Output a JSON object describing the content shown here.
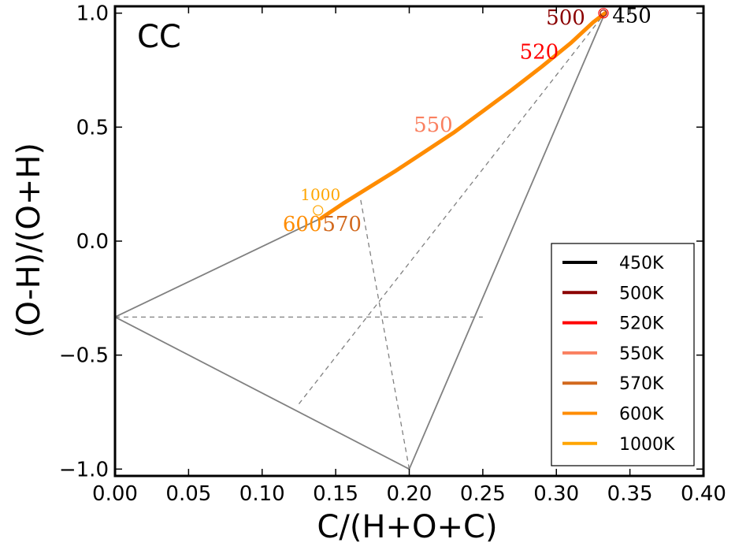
{
  "chart_data": {
    "type": "line",
    "panel_label": "CC",
    "xlabel": "C/(H+O+C)",
    "ylabel": "(O-H)/(O+H)",
    "xlim": [
      0.0,
      0.4
    ],
    "ylim": [
      -1.03,
      1.03
    ],
    "xticks": [
      0.0,
      0.05,
      0.1,
      0.15,
      0.2,
      0.25,
      0.3,
      0.35,
      0.4
    ],
    "xtick_labels": [
      "0.00",
      "0.05",
      "0.10",
      "0.15",
      "0.20",
      "0.25",
      "0.30",
      "0.35",
      "0.40"
    ],
    "yticks": [
      -1.0,
      -0.5,
      0.0,
      0.5,
      1.0
    ],
    "ytick_labels": [
      "−1.0",
      "−0.5",
      "0.0",
      "0.5",
      "1.0"
    ],
    "boundary_solid": [
      [
        [
          0.0,
          -0.333
        ],
        [
          0.14,
          0.1
        ]
      ],
      [
        [
          0.0,
          -0.333
        ],
        [
          0.2,
          -1.0
        ]
      ],
      [
        [
          0.2,
          -1.0
        ],
        [
          0.333,
          1.0
        ]
      ]
    ],
    "boundary_dashed": [
      [
        [
          0.0,
          -0.333
        ],
        [
          0.25,
          -0.333
        ]
      ],
      [
        [
          0.125,
          -0.714
        ],
        [
          0.333,
          1.0
        ]
      ],
      [
        [
          0.2,
          -1.0
        ],
        [
          0.167,
          0.18
        ]
      ]
    ],
    "legend_title": "",
    "series": [
      {
        "name": "450K",
        "color": "#000000"
      },
      {
        "name": "500K",
        "color": "#8b0000"
      },
      {
        "name": "520K",
        "color": "#ff0000"
      },
      {
        "name": "550K",
        "color": "#fa8060"
      },
      {
        "name": "570K",
        "color": "#d2691e"
      },
      {
        "name": "600K",
        "color": "#ff8c00"
      },
      {
        "name": "1000K",
        "color": "#ffa500"
      }
    ],
    "curve_points": [
      [
        0.333,
        1.0
      ],
      [
        0.325,
        0.96
      ],
      [
        0.31,
        0.87
      ],
      [
        0.29,
        0.765
      ],
      [
        0.27,
        0.665
      ],
      [
        0.25,
        0.57
      ],
      [
        0.23,
        0.475
      ],
      [
        0.21,
        0.39
      ],
      [
        0.19,
        0.305
      ],
      [
        0.17,
        0.225
      ],
      [
        0.155,
        0.165
      ],
      [
        0.14,
        0.1
      ]
    ],
    "curve_color": "#ff8c00",
    "markers": [
      {
        "x": 0.332,
        "y": 1.0,
        "color": "#ff0000"
      },
      {
        "x": 0.332,
        "y": 1.0,
        "color": "#8b0000"
      },
      {
        "x": 0.138,
        "y": 0.135,
        "color": "#ffa500"
      }
    ],
    "annotations": [
      {
        "text": "450",
        "x": 0.338,
        "y": 0.96,
        "color": "#000000",
        "size": 26
      },
      {
        "text": "500",
        "x": 0.293,
        "y": 0.95,
        "color": "#8b0000",
        "size": 26
      },
      {
        "text": "520",
        "x": 0.275,
        "y": 0.8,
        "color": "#ff0000",
        "size": 26
      },
      {
        "text": "550",
        "x": 0.203,
        "y": 0.48,
        "color": "#fa8060",
        "size": 26
      },
      {
        "text": "1000",
        "x": 0.126,
        "y": 0.18,
        "color": "#ffa500",
        "size": 20
      },
      {
        "text": "600",
        "x": 0.114,
        "y": 0.045,
        "color": "#ff8c00",
        "size": 26
      },
      {
        "text": "570",
        "x": 0.141,
        "y": 0.045,
        "color": "#d2691e",
        "size": 26
      }
    ]
  }
}
